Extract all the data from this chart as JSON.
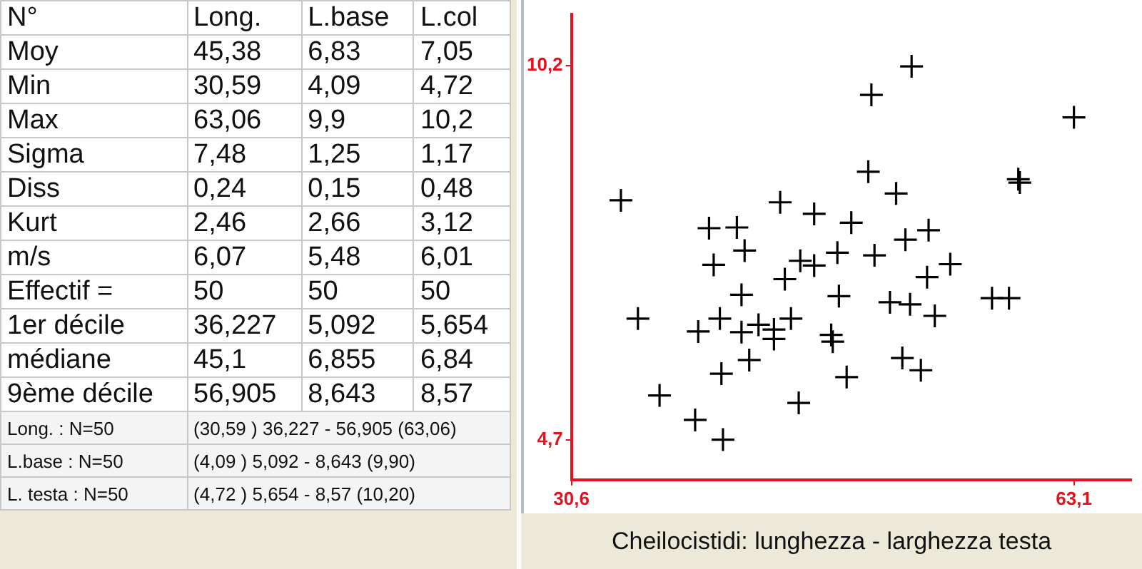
{
  "chart_data": [
    {
      "type": "other",
      "annotations": [
        "N°\tLong.\tL.base\tL.col",
        "Moy\t45,38\t6,83\t7,05",
        "Min\t30,59\t4,09\t4,72",
        "Max\t63,06\t9,9\t10,2",
        "Sigma\t7,48\t1,25\t1,17",
        "Diss\t0,24\t0,15\t0,48",
        "Kurt\t2,46\t2,66\t3,12",
        "m/s\t6,07\t5,48\t6,01",
        "Effectif =\t50\t50\t50",
        "1er décile\t36,227\t5,092\t5,654",
        "médiane\t45,1\t6,855\t6,84",
        "9ème décile\t56,905\t8,643\t8,57",
        "Long.    : N=50\t(30,59 ) 36,227 - 56,905 (63,06)",
        "L.base  : N=50\t(4,09 ) 5,092 - 8,643 (9,90)",
        "L. testa : N=50\t(4,72 ) 5,654 - 8,57 (10,20)"
      ]
    },
    {
      "type": "scatter",
      "marker": "cross",
      "grid": false,
      "legend": false,
      "annotations": [
        "Cheilocistidi: lunghezza - larghezza testa"
      ],
      "xlim": [
        30.6,
        66.8
      ],
      "ylim": [
        4.11,
        10.96
      ],
      "xticks": [
        {
          "value": 30.6,
          "label": "30,6"
        },
        {
          "value": 63.1,
          "label": "63,1"
        }
      ],
      "yticks": [
        {
          "value": 4.7,
          "label": "4,7"
        },
        {
          "value": 10.2,
          "label": "10,2"
        }
      ],
      "series": [
        {
          "color": "#000000",
          "x": [
            52.6,
            50.0,
            63.1,
            49.8,
            51.6,
            59.5,
            59.6,
            33.8,
            44.1,
            46.3,
            48.7,
            39.5,
            41.3,
            53.7,
            52.2,
            41.8,
            47.8,
            50.2,
            39.8,
            45.4,
            46.3,
            55.1,
            44.4,
            53.6,
            41.6,
            47.9,
            51.2,
            52.5,
            57.8,
            58.9,
            34.9,
            38.8,
            40.2,
            41.6,
            42.7,
            43.7,
            43.7,
            44.8,
            47.4,
            47.5,
            54.1,
            42.1,
            40.3,
            52.0,
            53.2,
            48.4,
            36.3,
            45.3,
            38.6,
            40.4
          ],
          "values": [
            10.19,
            9.77,
            9.44,
            8.64,
            8.32,
            8.53,
            8.48,
            8.22,
            8.19,
            8.02,
            7.89,
            7.81,
            7.82,
            7.78,
            7.64,
            7.48,
            7.45,
            7.41,
            7.27,
            7.33,
            7.26,
            7.28,
            7.06,
            7.09,
            6.83,
            6.81,
            6.72,
            6.69,
            6.78,
            6.78,
            6.48,
            6.29,
            6.48,
            6.28,
            6.39,
            6.32,
            6.18,
            6.48,
            6.24,
            6.14,
            6.52,
            5.87,
            5.67,
            5.9,
            5.72,
            5.62,
            5.35,
            5.24,
            4.99,
            4.7
          ]
        }
      ]
    }
  ]
}
